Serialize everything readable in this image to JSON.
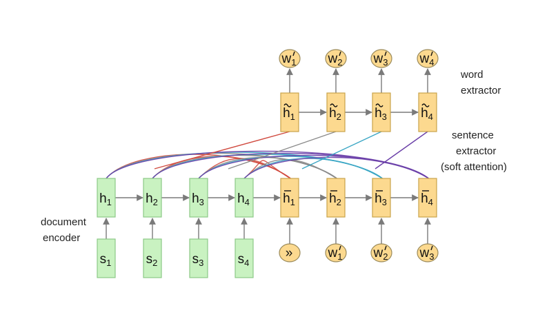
{
  "colors": {
    "green_fill": "#c9f2c1",
    "green_stroke": "#8dc987",
    "orange_fill": "#fcd98f",
    "orange_stroke": "#c9a34a",
    "circle_fill": "#fcd98f",
    "circle_stroke": "#9a8a5a",
    "arrow": "#7a7a7a",
    "att_red": "#d04a3f",
    "att_teal": "#3aa6c4",
    "att_purple": "#6a3fa8",
    "att_gray": "#8a8a8a"
  },
  "encoder": {
    "hidden": [
      {
        "base": "h",
        "sub": "1"
      },
      {
        "base": "h",
        "sub": "2"
      },
      {
        "base": "h",
        "sub": "3"
      },
      {
        "base": "h",
        "sub": "4"
      }
    ],
    "inputs": [
      {
        "base": "s",
        "sub": "1"
      },
      {
        "base": "s",
        "sub": "2"
      },
      {
        "base": "s",
        "sub": "3"
      },
      {
        "base": "s",
        "sub": "4"
      }
    ]
  },
  "sentence_extractor": {
    "hidden": [
      {
        "base": "h",
        "sub": "1"
      },
      {
        "base": "h",
        "sub": "2"
      },
      {
        "base": "h",
        "sub": "3"
      },
      {
        "base": "h",
        "sub": "4"
      }
    ],
    "inputs": [
      {
        "base": "»",
        "sub": ""
      },
      {
        "base": "w",
        "sub": "1"
      },
      {
        "base": "w",
        "sub": "2"
      },
      {
        "base": "w",
        "sub": "3"
      }
    ]
  },
  "word_extractor": {
    "hidden": [
      {
        "base": "h",
        "sub": "1"
      },
      {
        "base": "h",
        "sub": "2"
      },
      {
        "base": "h",
        "sub": "3"
      },
      {
        "base": "h",
        "sub": "4"
      }
    ],
    "outputs": [
      {
        "base": "w",
        "sub": "1"
      },
      {
        "base": "w",
        "sub": "2"
      },
      {
        "base": "w",
        "sub": "3"
      },
      {
        "base": "w",
        "sub": "4"
      }
    ]
  },
  "labels": {
    "word_extractor_1": "word",
    "word_extractor_2": "extractor",
    "sentence_extractor_1": "sentence",
    "sentence_extractor_2": "extractor",
    "sentence_extractor_3": "(soft attention)",
    "document_encoder_1": "document",
    "document_encoder_2": "encoder"
  }
}
